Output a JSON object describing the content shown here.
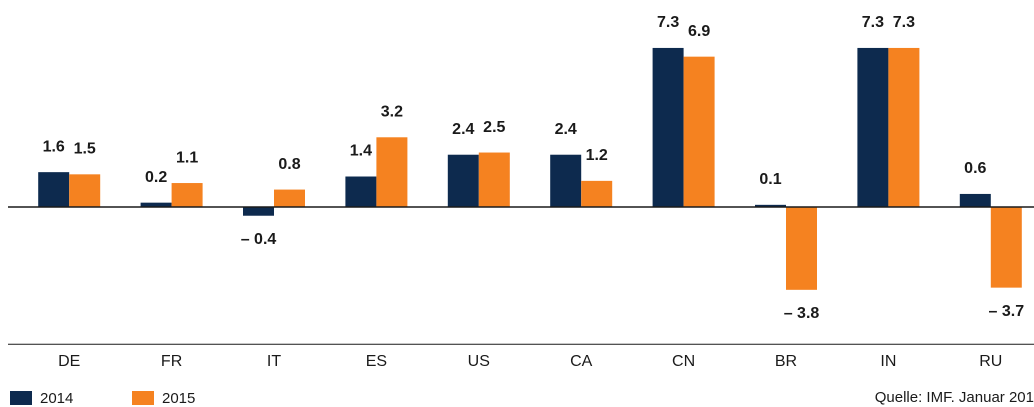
{
  "chart_data": {
    "type": "bar",
    "categories": [
      "DE",
      "FR",
      "IT",
      "ES",
      "US",
      "CA",
      "CN",
      "BR",
      "IN",
      "RU"
    ],
    "series": [
      {
        "name": "2014",
        "color": "#0d2a4e",
        "values": [
          1.6,
          0.2,
          -0.4,
          1.4,
          2.4,
          2.4,
          7.3,
          0.1,
          7.3,
          0.6
        ],
        "value_labels": [
          "1.6",
          "0.2",
          "– 0.4",
          "1.4",
          "2.4",
          "2.4",
          "7.3",
          "0.1",
          "7.3",
          "0.6"
        ]
      },
      {
        "name": "2015",
        "color": "#f58220",
        "values": [
          1.5,
          1.1,
          0.8,
          3.2,
          2.5,
          1.2,
          6.9,
          -3.8,
          7.3,
          -3.7
        ],
        "value_labels": [
          "1.5",
          "1.1",
          "0.8",
          "3.2",
          "2.5",
          "1.2",
          "6.9",
          "– 3.8",
          "7.3",
          "– 3.7"
        ]
      }
    ],
    "ylim": [
      -6.3,
      9.5
    ],
    "source": "Quelle: IMF. Januar 201"
  }
}
